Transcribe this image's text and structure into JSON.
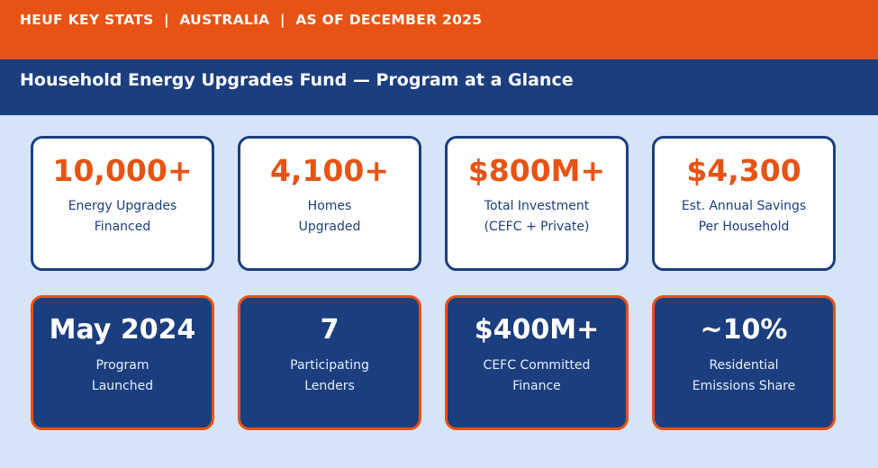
{
  "header": {
    "banner": "HEUF KEY STATS  |  AUSTRALIA  |  AS OF DECEMBER 2025",
    "title": "Household Energy Upgrades Fund — Program at a Glance"
  },
  "cards": {
    "top_row": [
      {
        "value": "10,000+",
        "label": [
          "Energy Upgrades",
          "Financed"
        ]
      },
      {
        "value": "4,100+",
        "label": [
          "Homes",
          "Upgraded"
        ]
      },
      {
        "value": "$800M+",
        "label": [
          "Total Investment",
          "(CEFC + Private)"
        ]
      },
      {
        "value": "$4,300",
        "label": [
          "Est. Annual Savings",
          "Per Household"
        ]
      }
    ],
    "bottom_row": [
      {
        "value": "May 2024",
        "label": [
          "Program",
          "Launched"
        ]
      },
      {
        "value": "7",
        "label": [
          "Participating",
          "Lenders"
        ]
      },
      {
        "value": "$400M+",
        "label": [
          "CEFC Committed",
          "Finance"
        ]
      },
      {
        "value": "~10%",
        "label": [
          "Residential",
          "Emissions Share"
        ]
      }
    ]
  }
}
